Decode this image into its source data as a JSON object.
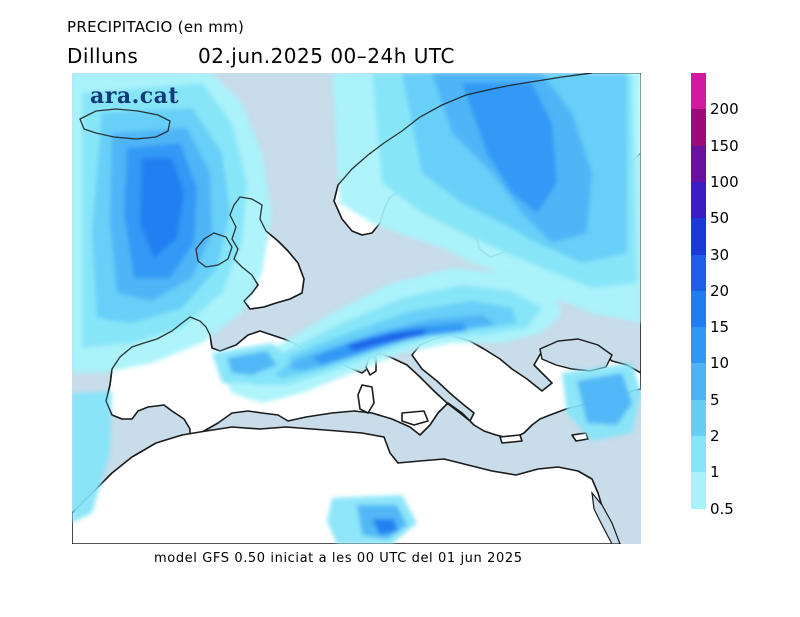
{
  "header": {
    "title": "PRECIPITACIO (en mm)",
    "day": "Dilluns",
    "date_range": "02.jun.2025  00–24h  UTC"
  },
  "logo": {
    "text": "ara.cat"
  },
  "footer": {
    "text": "model GFS 0.50 iniciat a les 00 UTC del 01 jun 2025"
  },
  "map": {
    "land_color": "#ffffff",
    "sea_color": "#c8dcea",
    "coast_color": "#1a1a1a"
  },
  "legend": {
    "classes": [
      {
        "label": "200",
        "color": "#d11aa0"
      },
      {
        "label": "150",
        "color": "#9e0a7a"
      },
      {
        "label": "100",
        "color": "#6a0fa0"
      },
      {
        "label": "50",
        "color": "#3a1bc4"
      },
      {
        "label": "30",
        "color": "#1a3ad8"
      },
      {
        "label": "20",
        "color": "#1d5ee8"
      },
      {
        "label": "15",
        "color": "#1f7df0"
      },
      {
        "label": "10",
        "color": "#2f97f5"
      },
      {
        "label": "5",
        "color": "#4db3f6"
      },
      {
        "label": "2",
        "color": "#66cdf7"
      },
      {
        "label": "1",
        "color": "#84e4f8"
      },
      {
        "label": "0.5",
        "color": "#a8f3fb"
      }
    ]
  }
}
